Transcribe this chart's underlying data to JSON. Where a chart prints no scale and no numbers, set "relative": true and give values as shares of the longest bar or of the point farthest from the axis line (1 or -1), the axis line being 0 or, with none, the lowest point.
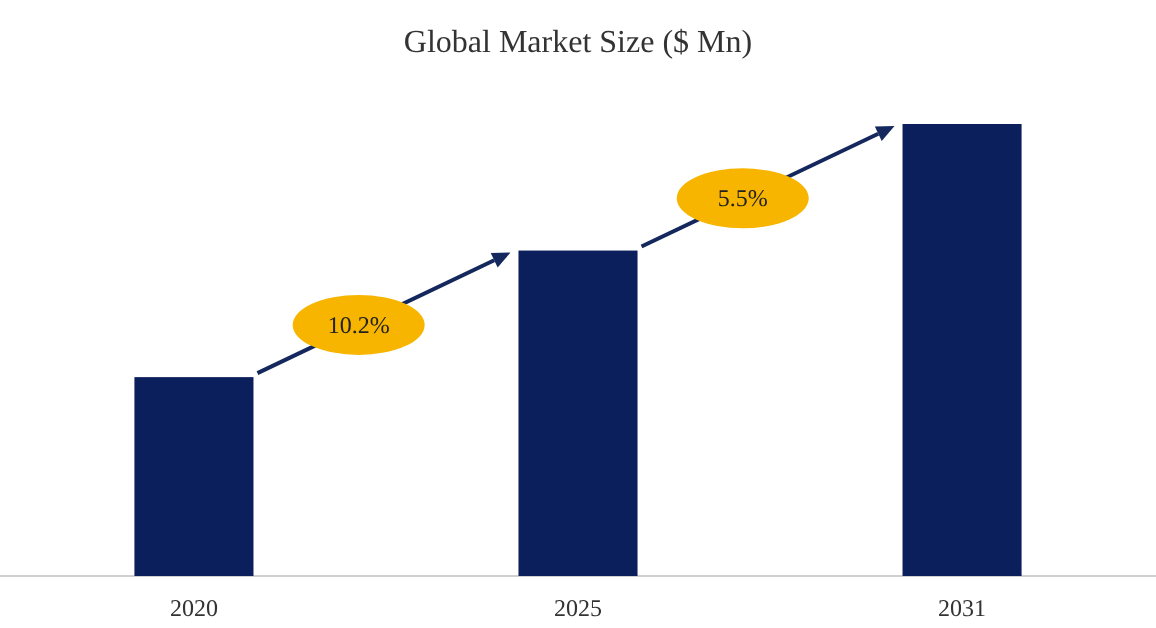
{
  "chart_data": {
    "type": "bar",
    "title": "Global Market Size ($ Mn)",
    "categories": [
      "2020",
      "2025",
      "2031"
    ],
    "values": [
      0.44,
      0.72,
      1
    ],
    "color": "#0b1f5c",
    "relative": true,
    "annotations": [
      "10.2%",
      "5.5%"
    ]
  }
}
